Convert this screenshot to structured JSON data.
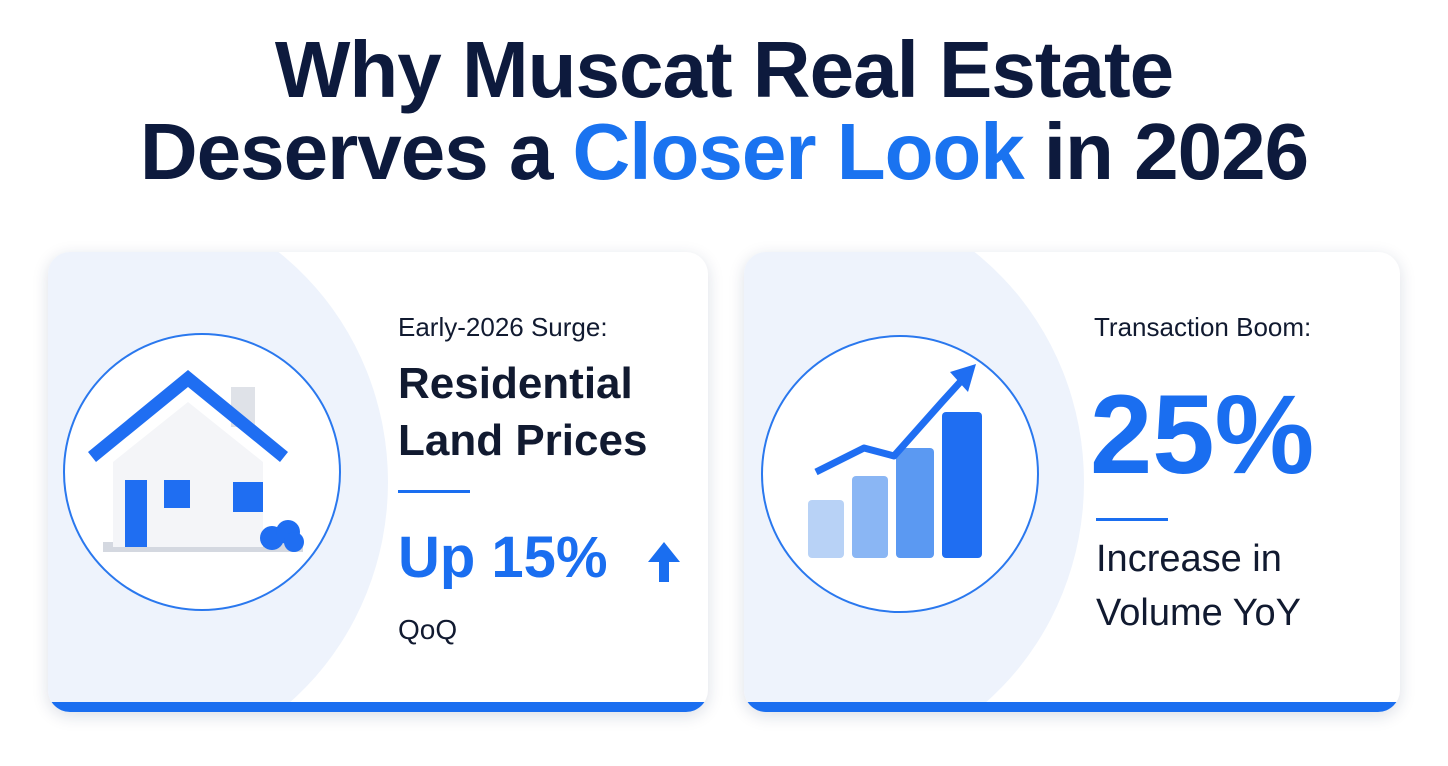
{
  "title": {
    "line1": "Why Muscat Real Estate",
    "line2_start": "Deserves a",
    "highlight": "Closer Look",
    "line2_end": "in 2026"
  },
  "cards": [
    {
      "label": "Early-2026 Surge:",
      "headline": "Residential Land Prices",
      "stat": "Up 15%",
      "note": "QoQ"
    },
    {
      "label": "Transaction Boom:",
      "stat": "25%",
      "note": "Increase in Volume YoY"
    }
  ]
}
